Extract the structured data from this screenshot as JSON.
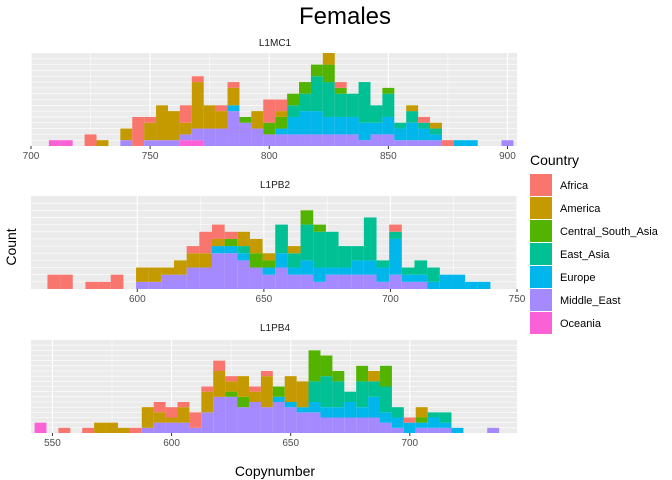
{
  "figure": {
    "title": "Females",
    "xlabel": "Copynumber",
    "ylabel": "Count"
  },
  "legend": {
    "title": "Country",
    "placement": "right",
    "items": [
      {
        "label": "Africa",
        "color": "#F8766D"
      },
      {
        "label": "America",
        "color": "#C49A00"
      },
      {
        "label": "Central_South_Asia",
        "color": "#53B400"
      },
      {
        "label": "East_Asia",
        "color": "#00C094"
      },
      {
        "label": "Europe",
        "color": "#00B6EB"
      },
      {
        "label": "Middle_East",
        "color": "#A58AFF"
      },
      {
        "label": "Oceania",
        "color": "#FB61D7"
      }
    ]
  },
  "style": {
    "panel_bg": "#EBEBEB",
    "grid_color": "#FFFFFF",
    "text_color": "#4D4D4D",
    "title_color": "#000000"
  },
  "chart_data": [
    {
      "type": "bar",
      "subtype": "stacked-histogram",
      "title": "L1MC1",
      "xlim": [
        700,
        904
      ],
      "xticks": [
        700,
        750,
        800,
        850,
        900
      ],
      "ylim": [
        0,
        16
      ],
      "grid": true,
      "series_order": [
        "Oceania",
        "Middle_East",
        "Europe",
        "East_Asia",
        "Central_South_Asia",
        "America",
        "Africa"
      ],
      "bins": [
        {
          "x": 710,
          "stack": {
            "Oceania": 1
          }
        },
        {
          "x": 715,
          "stack": {
            "Oceania": 1
          }
        },
        {
          "x": 725,
          "stack": {
            "Africa": 2
          }
        },
        {
          "x": 730,
          "stack": {
            "America": 1
          }
        },
        {
          "x": 740,
          "stack": {
            "Middle_East": 1,
            "America": 2
          }
        },
        {
          "x": 745,
          "stack": {
            "Africa": 5
          }
        },
        {
          "x": 750,
          "stack": {
            "Middle_East": 1,
            "America": 3,
            "Africa": 1
          }
        },
        {
          "x": 755,
          "stack": {
            "Middle_East": 1,
            "America": 6
          }
        },
        {
          "x": 760,
          "stack": {
            "Middle_East": 1,
            "America": 5
          }
        },
        {
          "x": 765,
          "stack": {
            "Oceania": 1,
            "Middle_East": 1,
            "America": 2,
            "Africa": 3
          }
        },
        {
          "x": 770,
          "stack": {
            "Oceania": 1,
            "Middle_East": 2,
            "America": 8,
            "Africa": 1
          }
        },
        {
          "x": 775,
          "stack": {
            "Middle_East": 3,
            "America": 4
          }
        },
        {
          "x": 780,
          "stack": {
            "Middle_East": 3,
            "America": 3,
            "Africa": 1
          }
        },
        {
          "x": 785,
          "stack": {
            "Middle_East": 6,
            "America": 3,
            "Europe": 1,
            "Africa": 1
          }
        },
        {
          "x": 790,
          "stack": {
            "Middle_East": 4,
            "Central_South_Asia": 1
          }
        },
        {
          "x": 795,
          "stack": {
            "Middle_East": 3,
            "America": 3
          }
        },
        {
          "x": 800,
          "stack": {
            "Middle_East": 2,
            "Central_South_Asia": 2,
            "Africa": 4
          }
        },
        {
          "x": 805,
          "stack": {
            "Middle_East": 2,
            "Europe": 1,
            "Central_South_Asia": 2,
            "America": 1,
            "Africa": 2
          }
        },
        {
          "x": 810,
          "stack": {
            "Middle_East": 2,
            "Europe": 3,
            "East_Asia": 2,
            "Central_South_Asia": 2
          }
        },
        {
          "x": 815,
          "stack": {
            "Middle_East": 2,
            "Europe": 4,
            "East_Asia": 3,
            "Central_South_Asia": 2
          }
        },
        {
          "x": 820,
          "stack": {
            "Middle_East": 2,
            "Europe": 4,
            "East_Asia": 6,
            "Central_South_Asia": 2
          }
        },
        {
          "x": 825,
          "stack": {
            "Middle_East": 2,
            "Europe": 3,
            "East_Asia": 6,
            "Central_South_Asia": 3,
            "America": 2
          }
        },
        {
          "x": 830,
          "stack": {
            "Middle_East": 2,
            "Europe": 3,
            "East_Asia": 4,
            "Central_South_Asia": 1,
            "Africa": 1
          }
        },
        {
          "x": 835,
          "stack": {
            "Middle_East": 2,
            "Europe": 3,
            "East_Asia": 4
          }
        },
        {
          "x": 840,
          "stack": {
            "Middle_East": 1,
            "Europe": 3,
            "East_Asia": 7
          }
        },
        {
          "x": 845,
          "stack": {
            "Middle_East": 2,
            "Europe": 2,
            "East_Asia": 3
          }
        },
        {
          "x": 850,
          "stack": {
            "Middle_East": 2,
            "Europe": 3,
            "East_Asia": 4,
            "Central_South_Asia": 1
          }
        },
        {
          "x": 855,
          "stack": {
            "Middle_East": 1,
            "Europe": 2,
            "East_Asia": 1
          }
        },
        {
          "x": 860,
          "stack": {
            "Middle_East": 1,
            "Europe": 3,
            "East_Asia": 2,
            "America": 1
          }
        },
        {
          "x": 865,
          "stack": {
            "Middle_East": 1,
            "Europe": 2,
            "East_Asia": 1,
            "Africa": 1
          }
        },
        {
          "x": 870,
          "stack": {
            "Middle_East": 1,
            "Europe": 1,
            "East_Asia": 1,
            "America": 1
          }
        },
        {
          "x": 875,
          "stack": {
            "Africa": 1
          }
        },
        {
          "x": 880,
          "stack": {
            "Europe": 1
          }
        },
        {
          "x": 885,
          "stack": {
            "Europe": 1
          }
        },
        {
          "x": 900,
          "stack": {
            "Middle_East": 1
          }
        }
      ]
    },
    {
      "type": "bar",
      "subtype": "stacked-histogram",
      "title": "L1PB2",
      "xlim": [
        558,
        750
      ],
      "xticks": [
        600,
        650,
        700,
        750
      ],
      "ylim": [
        0,
        13
      ],
      "grid": true,
      "series_order": [
        "Oceania",
        "Middle_East",
        "Europe",
        "East_Asia",
        "Central_South_Asia",
        "America",
        "Africa"
      ],
      "bins": [
        {
          "x": 567,
          "stack": {
            "Africa": 2
          }
        },
        {
          "x": 572,
          "stack": {
            "Africa": 2
          }
        },
        {
          "x": 582,
          "stack": {
            "Africa": 1
          }
        },
        {
          "x": 587,
          "stack": {
            "Africa": 1
          }
        },
        {
          "x": 592,
          "stack": {
            "Africa": 2
          }
        },
        {
          "x": 602,
          "stack": {
            "Middle_East": 1,
            "America": 2
          }
        },
        {
          "x": 607,
          "stack": {
            "Middle_East": 1,
            "America": 2
          }
        },
        {
          "x": 612,
          "stack": {
            "Middle_East": 2,
            "America": 1
          }
        },
        {
          "x": 617,
          "stack": {
            "Middle_East": 2,
            "America": 2
          }
        },
        {
          "x": 622,
          "stack": {
            "Middle_East": 3,
            "America": 2,
            "Africa": 1
          }
        },
        {
          "x": 627,
          "stack": {
            "Middle_East": 3,
            "America": 2,
            "Africa": 3
          }
        },
        {
          "x": 632,
          "stack": {
            "Middle_East": 5,
            "Europe": 1,
            "America": 1,
            "Africa": 2
          }
        },
        {
          "x": 637,
          "stack": {
            "Middle_East": 5,
            "Europe": 1,
            "Central_South_Asia": 1,
            "Africa": 1
          }
        },
        {
          "x": 642,
          "stack": {
            "Middle_East": 4,
            "Europe": 1,
            "East_Asia": 1,
            "America": 2
          }
        },
        {
          "x": 647,
          "stack": {
            "Middle_East": 3,
            "Central_South_Asia": 2,
            "America": 2
          }
        },
        {
          "x": 652,
          "stack": {
            "Middle_East": 2,
            "Europe": 1,
            "Central_South_Asia": 1,
            "America": 1
          }
        },
        {
          "x": 657,
          "stack": {
            "Middle_East": 3,
            "Europe": 2,
            "East_Asia": 4
          }
        },
        {
          "x": 662,
          "stack": {
            "Middle_East": 2,
            "Europe": 1,
            "East_Asia": 2,
            "America": 1
          }
        },
        {
          "x": 667,
          "stack": {
            "Middle_East": 2,
            "Europe": 2,
            "East_Asia": 5,
            "Central_South_Asia": 2
          }
        },
        {
          "x": 672,
          "stack": {
            "Middle_East": 1,
            "Europe": 2,
            "East_Asia": 5,
            "Central_South_Asia": 1
          }
        },
        {
          "x": 677,
          "stack": {
            "Middle_East": 2,
            "Europe": 1,
            "East_Asia": 5
          }
        },
        {
          "x": 682,
          "stack": {
            "Middle_East": 2,
            "Europe": 1,
            "East_Asia": 3
          }
        },
        {
          "x": 687,
          "stack": {
            "Middle_East": 2,
            "Europe": 2,
            "East_Asia": 2
          }
        },
        {
          "x": 692,
          "stack": {
            "Middle_East": 2,
            "Europe": 2,
            "East_Asia": 6
          }
        },
        {
          "x": 697,
          "stack": {
            "Middle_East": 1,
            "Europe": 2,
            "East_Asia": 1
          }
        },
        {
          "x": 702,
          "stack": {
            "Middle_East": 2,
            "Europe": 5,
            "East_Asia": 1,
            "Africa": 1
          }
        },
        {
          "x": 707,
          "stack": {
            "Middle_East": 1,
            "Europe": 1,
            "East_Asia": 1
          }
        },
        {
          "x": 712,
          "stack": {
            "Middle_East": 1,
            "Europe": 1,
            "East_Asia": 2
          }
        },
        {
          "x": 717,
          "stack": {
            "Europe": 1,
            "East_Asia": 2
          }
        },
        {
          "x": 722,
          "stack": {
            "Europe": 2
          }
        },
        {
          "x": 727,
          "stack": {
            "Europe": 2
          }
        },
        {
          "x": 732,
          "stack": {
            "Europe": 1
          }
        },
        {
          "x": 737,
          "stack": {
            "Europe": 1
          }
        }
      ]
    },
    {
      "type": "bar",
      "subtype": "stacked-histogram",
      "title": "L1PB4",
      "xlim": [
        541,
        745
      ],
      "xticks": [
        550,
        600,
        650,
        700
      ],
      "ylim": [
        0,
        18
      ],
      "grid": true,
      "series_order": [
        "Oceania",
        "Middle_East",
        "Europe",
        "East_Asia",
        "Central_South_Asia",
        "America",
        "Africa"
      ],
      "bins": [
        {
          "x": 545,
          "stack": {
            "Oceania": 2
          }
        },
        {
          "x": 555,
          "stack": {
            "Africa": 1
          }
        },
        {
          "x": 565,
          "stack": {
            "Africa": 1
          }
        },
        {
          "x": 570,
          "stack": {
            "America": 2
          }
        },
        {
          "x": 575,
          "stack": {
            "America": 2
          }
        },
        {
          "x": 580,
          "stack": {
            "America": 1
          }
        },
        {
          "x": 585,
          "stack": {
            "Africa": 1
          }
        },
        {
          "x": 590,
          "stack": {
            "Middle_East": 1,
            "America": 4
          }
        },
        {
          "x": 595,
          "stack": {
            "Middle_East": 2,
            "America": 2,
            "Africa": 2
          }
        },
        {
          "x": 600,
          "stack": {
            "Middle_East": 2,
            "America": 1,
            "Africa": 2
          }
        },
        {
          "x": 605,
          "stack": {
            "Middle_East": 2,
            "America": 3,
            "Africa": 1
          }
        },
        {
          "x": 610,
          "stack": {
            "Middle_East": 1,
            "Africa": 3
          }
        },
        {
          "x": 615,
          "stack": {
            "Middle_East": 4,
            "America": 4,
            "Africa": 1
          }
        },
        {
          "x": 620,
          "stack": {
            "Middle_East": 7,
            "America": 5,
            "Africa": 2
          }
        },
        {
          "x": 625,
          "stack": {
            "Middle_East": 7,
            "Central_South_Asia": 1,
            "America": 2,
            "Africa": 1
          }
        },
        {
          "x": 630,
          "stack": {
            "Middle_East": 5,
            "Central_South_Asia": 2,
            "America": 4
          }
        },
        {
          "x": 635,
          "stack": {
            "Middle_East": 6,
            "America": 2,
            "Africa": 1
          }
        },
        {
          "x": 640,
          "stack": {
            "Middle_East": 5,
            "America": 6,
            "Africa": 1
          }
        },
        {
          "x": 645,
          "stack": {
            "Middle_East": 6,
            "Europe": 1,
            "Central_South_Asia": 2
          }
        },
        {
          "x": 650,
          "stack": {
            "Middle_East": 5,
            "Europe": 1,
            "America": 5
          }
        },
        {
          "x": 655,
          "stack": {
            "Middle_East": 4,
            "Europe": 1,
            "America": 5
          }
        },
        {
          "x": 660,
          "stack": {
            "Middle_East": 4,
            "Europe": 2,
            "East_Asia": 4,
            "Central_South_Asia": 6
          }
        },
        {
          "x": 665,
          "stack": {
            "Middle_East": 3,
            "Europe": 2,
            "East_Asia": 6,
            "Central_South_Asia": 4
          }
        },
        {
          "x": 670,
          "stack": {
            "Middle_East": 3,
            "Europe": 2,
            "East_Asia": 5,
            "Central_South_Asia": 2
          }
        },
        {
          "x": 675,
          "stack": {
            "Middle_East": 3,
            "Europe": 3,
            "East_Asia": 2
          }
        },
        {
          "x": 680,
          "stack": {
            "Middle_East": 3,
            "Europe": 2,
            "East_Asia": 5,
            "Central_South_Asia": 3
          }
        },
        {
          "x": 685,
          "stack": {
            "Middle_East": 3,
            "Europe": 4,
            "East_Asia": 3,
            "America": 2
          }
        },
        {
          "x": 690,
          "stack": {
            "Middle_East": 2,
            "Europe": 2,
            "East_Asia": 5,
            "Central_South_Asia": 4
          }
        },
        {
          "x": 695,
          "stack": {
            "Middle_East": 1,
            "Europe": 2,
            "East_Asia": 2
          }
        },
        {
          "x": 700,
          "stack": {
            "Europe": 2,
            "Africa": 1
          }
        },
        {
          "x": 705,
          "stack": {
            "Middle_East": 1,
            "Europe": 1,
            "Central_South_Asia": 1,
            "America": 2
          }
        },
        {
          "x": 710,
          "stack": {
            "Middle_East": 1,
            "Europe": 2,
            "East_Asia": 1
          }
        },
        {
          "x": 715,
          "stack": {
            "Middle_East": 1,
            "Europe": 1,
            "East_Asia": 2
          }
        },
        {
          "x": 720,
          "stack": {
            "Europe": 1
          }
        },
        {
          "x": 735,
          "stack": {
            "Middle_East": 1
          }
        }
      ]
    }
  ]
}
